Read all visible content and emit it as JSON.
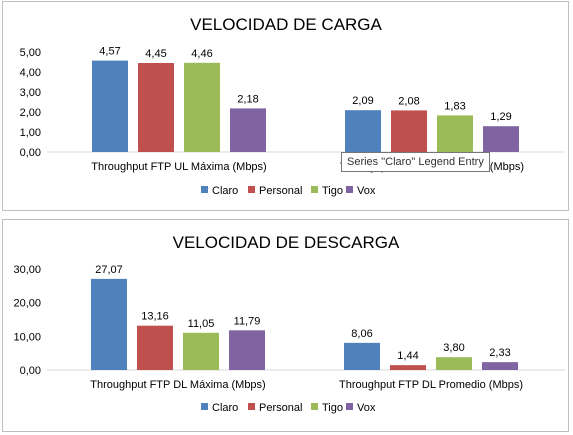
{
  "colors": {
    "Claro": "#4f81bd",
    "Personal": "#c0504d",
    "Tigo": "#9bbb59",
    "Vox": "#8064a2"
  },
  "tooltip": {
    "text": "Series \"Claro\" Legend Entry"
  },
  "chart_data": [
    {
      "type": "bar",
      "title": "VELOCIDAD DE CARGA",
      "categories": [
        "Throughput FTP UL Máxima (Mbps)",
        "Throughput FTP UL Promedio (Mbps)"
      ],
      "series": [
        {
          "name": "Claro",
          "values": [
            4.57,
            2.09
          ],
          "labels": [
            "4,57",
            "2,09"
          ]
        },
        {
          "name": "Personal",
          "values": [
            4.45,
            2.08
          ],
          "labels": [
            "4,45",
            "2,08"
          ]
        },
        {
          "name": "Tigo",
          "values": [
            4.46,
            1.83
          ],
          "labels": [
            "4,46",
            "1,83"
          ]
        },
        {
          "name": "Vox",
          "values": [
            2.18,
            1.29
          ],
          "labels": [
            "2,18",
            "1,29"
          ]
        }
      ],
      "ylim": [
        0,
        5
      ],
      "yticks": [
        0,
        1,
        2,
        3,
        4,
        5
      ],
      "ytick_labels": [
        "0,00",
        "1,00",
        "2,00",
        "3,00",
        "4,00",
        "5,00"
      ],
      "legend_position": "bottom",
      "grid": false
    },
    {
      "type": "bar",
      "title": "VELOCIDAD DE DESCARGA",
      "categories": [
        "Throughput FTP DL Máxima (Mbps)",
        "Throughput FTP DL Promedio (Mbps)"
      ],
      "series": [
        {
          "name": "Claro",
          "values": [
            27.07,
            8.06
          ],
          "labels": [
            "27,07",
            "8,06"
          ]
        },
        {
          "name": "Personal",
          "values": [
            13.16,
            1.44
          ],
          "labels": [
            "13,16",
            "1,44"
          ]
        },
        {
          "name": "Tigo",
          "values": [
            11.05,
            3.8
          ],
          "labels": [
            "11,05",
            "3,80"
          ]
        },
        {
          "name": "Vox",
          "values": [
            11.79,
            2.33
          ],
          "labels": [
            "11,79",
            "2,33"
          ]
        }
      ],
      "ylim": [
        0,
        30
      ],
      "yticks": [
        0,
        10,
        20,
        30
      ],
      "ytick_labels": [
        "0,00",
        "10,00",
        "20,00",
        "30,00"
      ],
      "legend_position": "bottom",
      "grid": false
    }
  ]
}
